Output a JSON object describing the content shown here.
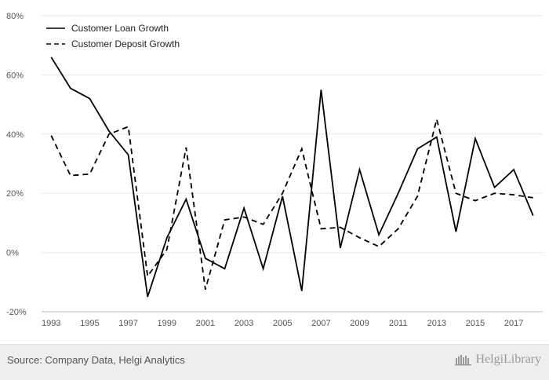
{
  "chart_data": {
    "type": "line",
    "title": "",
    "xlabel": "",
    "ylabel": "",
    "x": [
      1993,
      1994,
      1995,
      1996,
      1997,
      1998,
      1999,
      2000,
      2001,
      2002,
      2003,
      2004,
      2005,
      2006,
      2007,
      2008,
      2009,
      2010,
      2011,
      2012,
      2013,
      2014,
      2015,
      2016,
      2017,
      2018
    ],
    "x_tick_labels": [
      "1993",
      "1995",
      "1997",
      "1999",
      "2001",
      "2003",
      "2005",
      "2007",
      "2009",
      "2011",
      "2013",
      "2015",
      "2017"
    ],
    "y_tick_labels": [
      "80%",
      "60%",
      "40%",
      "20%",
      "0%",
      "-20%"
    ],
    "y_tick_values": [
      80,
      60,
      40,
      20,
      0,
      -20
    ],
    "ylim": [
      -20,
      80
    ],
    "grid": true,
    "legend_position": "top-left",
    "series": [
      {
        "name": "Customer Loan Growth",
        "style": "solid",
        "color": "#000000",
        "values": [
          66,
          55.5,
          52,
          41,
          33,
          -15,
          5,
          18,
          -2,
          -5.5,
          15,
          -5.5,
          19,
          -13,
          55,
          1.5,
          28,
          6,
          20,
          35,
          39,
          7,
          38.5,
          22,
          28,
          12.5
        ]
      },
      {
        "name": "Customer Deposit Growth",
        "style": "dashed",
        "color": "#000000",
        "values": [
          39.5,
          26,
          26.5,
          40,
          42.5,
          -8,
          1,
          35.5,
          -12.5,
          11,
          12,
          9.5,
          20,
          35,
          8,
          8.5,
          5,
          2,
          8,
          19,
          45,
          20,
          17.5,
          20,
          19.5,
          18.5
        ]
      }
    ]
  },
  "footer": {
    "source": "Source: Company Data, Helgi Analytics",
    "brand": "HelgiLibrary"
  },
  "colors": {
    "footer_bg": "#eeeeee",
    "line": "#000000",
    "grid": "#e6e6e6"
  }
}
